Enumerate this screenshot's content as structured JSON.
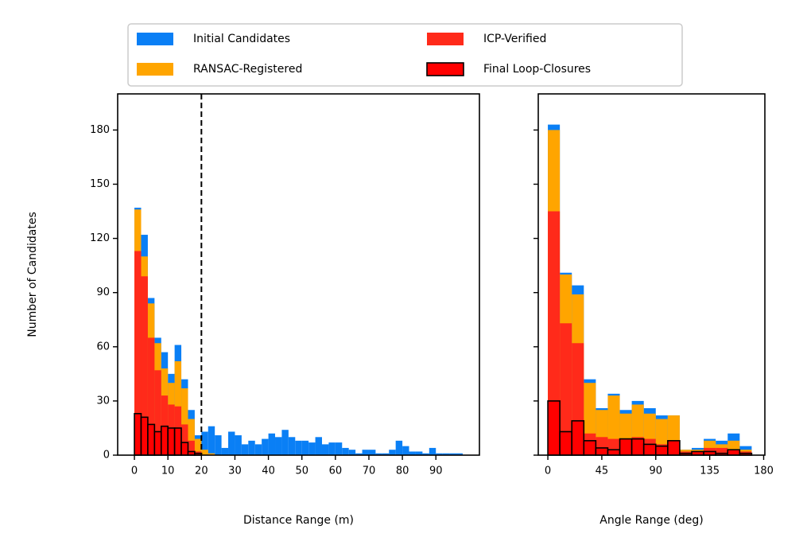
{
  "chart_data": [
    {
      "type": "histogram",
      "xlabel": "Distance Range (m)",
      "ylabel": "Number of Candidates",
      "xlim": [
        -5,
        103
      ],
      "ylim": [
        0,
        200
      ],
      "xticks": [
        0,
        10,
        20,
        30,
        40,
        50,
        60,
        70,
        80,
        90
      ],
      "yticks": [
        0,
        30,
        60,
        90,
        120,
        150,
        180
      ],
      "vline": 20,
      "bins": [
        0,
        2,
        4,
        6,
        8,
        10,
        12,
        14,
        16,
        18,
        20,
        22,
        24,
        26,
        28,
        30,
        32,
        34,
        36,
        38,
        40,
        42,
        44,
        46,
        48,
        50,
        52,
        54,
        56,
        58,
        60,
        62,
        64,
        66,
        68,
        70,
        72,
        74,
        76,
        78,
        80,
        82,
        84,
        86,
        88,
        90,
        92,
        94,
        96,
        98,
        100
      ],
      "series": [
        {
          "name": "Initial Candidates",
          "color": "#0a7ff5",
          "values": [
            137,
            122,
            87,
            65,
            57,
            45,
            61,
            42,
            25,
            11,
            13,
            16,
            11,
            4,
            13,
            11,
            6,
            8,
            6,
            9,
            12,
            10,
            14,
            10,
            8,
            8,
            7,
            10,
            6,
            7,
            7,
            4,
            3,
            1,
            3,
            3,
            1,
            1,
            3,
            8,
            5,
            2,
            2,
            1,
            4,
            1,
            1,
            1,
            1,
            0
          ]
        },
        {
          "name": "RANSAC-Registered",
          "color": "#ffa500",
          "values": [
            136,
            110,
            84,
            62,
            48,
            40,
            52,
            37,
            20,
            9,
            3,
            1,
            0,
            0,
            0,
            0,
            0,
            0,
            0,
            0,
            0,
            0,
            0,
            0,
            0,
            0,
            0,
            0,
            0,
            0,
            0,
            0,
            0,
            0,
            0,
            0,
            0,
            0,
            0,
            0,
            0,
            0,
            0,
            0,
            0,
            0,
            0,
            0,
            0,
            0
          ]
        },
        {
          "name": "ICP-Verified",
          "color": "#ff2a1a",
          "values": [
            113,
            99,
            65,
            47,
            33,
            28,
            27,
            17,
            8,
            2,
            0,
            0,
            0,
            0,
            0,
            0,
            0,
            0,
            0,
            0,
            0,
            0,
            0,
            0,
            0,
            0,
            0,
            0,
            0,
            0,
            0,
            0,
            0,
            0,
            0,
            0,
            0,
            0,
            0,
            0,
            0,
            0,
            0,
            0,
            0,
            0,
            0,
            0,
            0,
            0
          ]
        },
        {
          "name": "Final Loop-Closures",
          "color": "#ff0000",
          "edgecolor": "#000000",
          "values": [
            23,
            21,
            17,
            13,
            16,
            15,
            15,
            7,
            2,
            1,
            0,
            0,
            0,
            0,
            0,
            0,
            0,
            0,
            0,
            0,
            0,
            0,
            0,
            0,
            0,
            0,
            0,
            0,
            0,
            0,
            0,
            0,
            0,
            0,
            0,
            0,
            0,
            0,
            0,
            0,
            0,
            0,
            0,
            0,
            0,
            0,
            0,
            0,
            0,
            0
          ]
        }
      ]
    },
    {
      "type": "histogram",
      "xlabel": "Angle Range (deg)",
      "xlim": [
        -8,
        181
      ],
      "ylim": [
        0,
        200
      ],
      "xticks": [
        0,
        45,
        90,
        135,
        180
      ],
      "yticks": [
        0,
        30,
        60,
        90,
        120,
        150,
        180
      ],
      "bins": [
        0,
        10,
        20,
        30,
        40,
        50,
        60,
        70,
        80,
        90,
        100,
        110,
        120,
        130,
        140,
        150,
        160,
        170
      ],
      "series": [
        {
          "color": "#0a7ff5",
          "values": [
            183,
            101,
            94,
            42,
            26,
            34,
            25,
            30,
            26,
            22,
            22,
            3,
            4,
            9,
            8,
            12,
            5
          ]
        },
        {
          "color": "#ffa500",
          "values": [
            180,
            100,
            89,
            40,
            25,
            33,
            23,
            28,
            23,
            20,
            22,
            3,
            3,
            8,
            6,
            8,
            3
          ]
        },
        {
          "color": "#ff2a1a",
          "values": [
            135,
            73,
            62,
            12,
            10,
            9,
            8,
            10,
            9,
            6,
            6,
            2,
            2,
            4,
            4,
            3,
            2
          ]
        },
        {
          "color": "#ff0000",
          "edgecolor": "#000000",
          "values": [
            30,
            13,
            19,
            8,
            4,
            3,
            9,
            9,
            6,
            5,
            8,
            1,
            2,
            2,
            1,
            3,
            1
          ]
        }
      ]
    }
  ]
}
